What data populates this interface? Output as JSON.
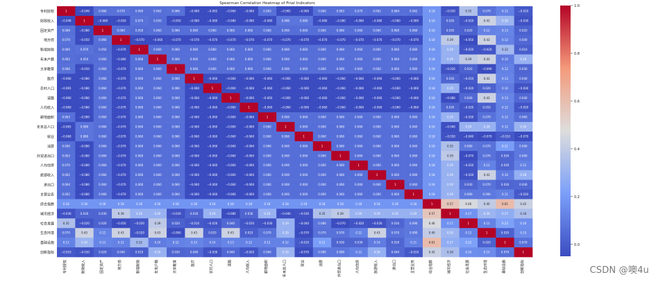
{
  "chart_data": {
    "type": "heatmap",
    "title": "Spearman Correlation Heatmap of Final Indicators",
    "labels": [
      "专利授权",
      "财政收入",
      "固定资产",
      "地方债",
      "新增财政",
      "年末户籍",
      "大学教育",
      "医疗",
      "农村人口",
      "道路",
      "人均收入",
      "耕地面积",
      "年末总人口",
      "就业",
      "消费",
      "外贸进出口",
      "人均住房",
      "旅游收入",
      "进出口",
      "主营业务",
      "综合指数",
      "城市经济",
      "社会发展",
      "生态环境",
      "基础设施",
      "创新指标"
    ],
    "matrix": [
      [
        1,
        -0.049,
        0.066,
        0.07,
        0.06,
        0.062,
        0.066,
        -0.06,
        -0.065,
        -0.06,
        -0.06,
        0.063,
        -0.065,
        -0.06,
        0.06,
        0.063,
        0.07,
        0.062,
        0.064,
        0.062,
        0.18,
        -0.03,
        0.35,
        0.07,
        0.12,
        -0.01
      ],
      [
        -0.049,
        1,
        -0.08,
        -0.05,
        0.07,
        0.05,
        -0.05,
        -0.08,
        -0.08,
        -0.08,
        -0.08,
        -0.08,
        0.08,
        0.08,
        -0.08,
        -0.08,
        -0.08,
        -0.08,
        -0.08,
        -0.08,
        0.18,
        0.03,
        -0.02,
        0.43,
        0.3,
        -0.03
      ],
      [
        0.066,
        -0.08,
        1,
        0.06,
        0.05,
        0.06,
        0.06,
        0.06,
        0.06,
        0.06,
        0.06,
        0.06,
        0.06,
        0.06,
        0.06,
        0.06,
        0.06,
        0.06,
        0.06,
        0.06,
        0.18,
        0.03,
        0.02,
        0.12,
        0.13,
        0.02
      ],
      [
        0.07,
        -0.05,
        0.06,
        1,
        -0.07,
        -0.06,
        -0.07,
        -0.07,
        -0.07,
        -0.07,
        -0.07,
        -0.07,
        -0.07,
        -0.07,
        -0.07,
        -0.07,
        -0.07,
        -0.07,
        -0.07,
        -0.07,
        0.18,
        0.39,
        -0.05,
        0.43,
        0.12,
        0.04
      ],
      [
        0.06,
        0.07,
        0.05,
        -0.07,
        1,
        0.06,
        0.06,
        0.06,
        0.06,
        0.06,
        0.06,
        0.06,
        0.06,
        0.06,
        0.06,
        0.06,
        0.06,
        0.06,
        0.06,
        0.06,
        0.18,
        0.29,
        -0.02,
        -0.02,
        0.32,
        0.01
      ],
      [
        0.062,
        0.05,
        0.06,
        -0.06,
        0.06,
        1,
        0.06,
        0.06,
        0.06,
        0.06,
        0.06,
        0.06,
        0.06,
        0.06,
        0.06,
        0.06,
        0.06,
        0.06,
        0.06,
        0.06,
        0.18,
        0.29,
        0.39,
        0.43,
        0.1,
        0.29
      ],
      [
        0.066,
        -0.05,
        0.06,
        -0.07,
        0.06,
        0.06,
        1,
        0.06,
        0.06,
        0.06,
        0.06,
        0.06,
        0.06,
        0.06,
        0.06,
        0.06,
        0.06,
        0.06,
        0.06,
        0.06,
        0.18,
        -0.03,
        0.02,
        -0.09,
        0.12,
        0.03
      ],
      [
        -0.06,
        -0.08,
        0.06,
        -0.07,
        0.06,
        0.06,
        0.06,
        1,
        -0.06,
        -0.06,
        -0.06,
        -0.06,
        -0.06,
        -0.06,
        -0.06,
        -0.06,
        -0.06,
        -0.06,
        -0.06,
        -0.06,
        0.18,
        0.03,
        -0.01,
        0.43,
        0.13,
        0.04
      ],
      [
        -0.065,
        -0.08,
        0.06,
        -0.07,
        0.06,
        0.06,
        0.06,
        -0.06,
        1,
        -0.06,
        -0.06,
        -0.06,
        -0.06,
        -0.06,
        -0.06,
        -0.06,
        -0.06,
        -0.06,
        -0.06,
        -0.06,
        0.18,
        0.29,
        -0.02,
        0.02,
        0.1,
        -0.03
      ],
      [
        -0.06,
        -0.08,
        0.06,
        -0.07,
        0.06,
        0.06,
        0.06,
        -0.06,
        -0.06,
        1,
        -0.06,
        -0.06,
        -0.06,
        -0.06,
        -0.06,
        -0.06,
        -0.06,
        -0.06,
        -0.06,
        -0.06,
        0.18,
        -0.08,
        0.04,
        0.43,
        0.13,
        0.04
      ],
      [
        -0.06,
        -0.08,
        0.06,
        -0.07,
        0.06,
        0.06,
        0.06,
        -0.06,
        -0.06,
        -0.06,
        1,
        -0.06,
        -0.06,
        -0.06,
        -0.06,
        -0.06,
        -0.06,
        -0.06,
        -0.06,
        -0.06,
        0.18,
        0.03,
        -0.02,
        0.01,
        0.12,
        -0.02
      ],
      [
        0.063,
        -0.08,
        0.06,
        -0.07,
        0.06,
        0.06,
        0.06,
        -0.06,
        -0.06,
        -0.06,
        -0.06,
        1,
        0.06,
        0.06,
        0.06,
        0.06,
        0.06,
        0.06,
        0.06,
        0.06,
        0.18,
        0.29,
        -0.03,
        0.07,
        0.12,
        0.06
      ],
      [
        -0.065,
        0.08,
        0.06,
        -0.07,
        0.06,
        0.06,
        0.06,
        -0.06,
        -0.06,
        -0.06,
        -0.06,
        0.06,
        1,
        0.06,
        0.06,
        0.06,
        0.06,
        0.06,
        0.06,
        0.06,
        0.18,
        -0.04,
        0.29,
        0.29,
        0.12,
        0.3
      ],
      [
        -0.06,
        0.08,
        0.06,
        -0.07,
        0.06,
        0.06,
        0.06,
        -0.06,
        -0.06,
        -0.06,
        -0.06,
        0.06,
        0.06,
        1,
        0.06,
        0.06,
        0.06,
        0.06,
        0.06,
        0.06,
        0.18,
        -0.03,
        -0.04,
        -0.07,
        -0.01,
        -0.07
      ],
      [
        0.06,
        -0.08,
        0.06,
        -0.07,
        0.06,
        0.06,
        0.06,
        -0.06,
        -0.06,
        -0.06,
        -0.06,
        0.06,
        0.06,
        0.06,
        1,
        0.06,
        0.06,
        0.06,
        0.06,
        0.06,
        0.18,
        0.35,
        0.08,
        0.07,
        0.21,
        0.09
      ],
      [
        0.063,
        -0.08,
        0.06,
        -0.07,
        0.06,
        0.06,
        0.06,
        -0.06,
        -0.06,
        -0.06,
        -0.06,
        0.06,
        0.06,
        0.06,
        0.06,
        1,
        0.06,
        0.06,
        0.06,
        0.06,
        0.18,
        0.39,
        -0.07,
        0.07,
        0.03,
        0.09
      ],
      [
        0.07,
        -0.08,
        0.06,
        -0.07,
        0.06,
        0.06,
        0.06,
        -0.06,
        -0.06,
        -0.06,
        -0.06,
        0.06,
        0.06,
        0.06,
        0.06,
        0.06,
        1,
        0.06,
        0.06,
        0.06,
        0.18,
        0.29,
        -0.02,
        0.12,
        0.03,
        0.12
      ],
      [
        0.062,
        -0.08,
        0.06,
        -0.07,
        0.06,
        0.06,
        0.06,
        -0.06,
        -0.06,
        -0.06,
        -0.06,
        0.06,
        0.06,
        0.06,
        0.06,
        0.06,
        0.06,
        1,
        0.06,
        0.06,
        0.18,
        0.29,
        -0.03,
        0.43,
        0.1,
        0.28
      ],
      [
        0.064,
        -0.08,
        0.06,
        -0.07,
        0.06,
        0.06,
        0.06,
        -0.06,
        -0.06,
        -0.06,
        -0.06,
        0.06,
        0.06,
        0.06,
        0.06,
        0.06,
        0.06,
        0.06,
        1,
        0.06,
        0.18,
        0.29,
        0.03,
        0.07,
        0.03,
        0.04
      ],
      [
        0.062,
        -0.08,
        0.06,
        -0.07,
        0.06,
        0.06,
        0.06,
        -0.06,
        -0.06,
        -0.06,
        -0.06,
        0.06,
        0.06,
        0.06,
        0.06,
        0.06,
        0.06,
        0.06,
        0.06,
        1,
        0.18,
        0.29,
        0.09,
        0.09,
        0.11,
        -0.01
      ],
      [
        0.18,
        0.18,
        0.18,
        0.18,
        0.18,
        0.18,
        0.18,
        0.18,
        0.18,
        0.18,
        0.18,
        0.18,
        0.18,
        0.18,
        0.18,
        0.18,
        0.18,
        0.18,
        0.18,
        0.18,
        1,
        0.57,
        0.46,
        0.4,
        0.61,
        0.42
      ],
      [
        -0.03,
        0.03,
        0.03,
        0.39,
        0.29,
        0.29,
        -0.03,
        0.03,
        0.29,
        -0.08,
        0.03,
        0.29,
        -0.04,
        -0.03,
        0.35,
        0.39,
        0.29,
        0.29,
        0.29,
        0.29,
        0.57,
        1,
        0.17,
        0.3,
        0.27,
        0.34
      ],
      [
        0.35,
        -0.02,
        0.02,
        -0.05,
        -0.02,
        0.39,
        0.02,
        -0.01,
        -0.02,
        0.04,
        -0.02,
        -0.03,
        0.29,
        -0.04,
        0.08,
        -0.07,
        -0.02,
        -0.03,
        0.03,
        0.09,
        0.46,
        0.17,
        1,
        0.12,
        0.22,
        0.16
      ],
      [
        0.07,
        0.43,
        0.12,
        0.43,
        -0.02,
        0.43,
        -0.09,
        0.43,
        0.02,
        0.43,
        0.01,
        0.07,
        0.29,
        -0.07,
        0.07,
        0.07,
        0.12,
        0.43,
        0.07,
        0.09,
        0.4,
        0.3,
        0.12,
        1,
        0.02,
        0.15
      ],
      [
        0.12,
        0.3,
        0.13,
        0.12,
        0.32,
        0.1,
        0.12,
        0.13,
        0.1,
        0.13,
        0.12,
        0.12,
        0.12,
        -0.01,
        0.21,
        0.03,
        0.03,
        0.1,
        0.03,
        0.11,
        0.61,
        0.27,
        0.22,
        0.02,
        1,
        0.07
      ],
      [
        -0.01,
        -0.03,
        0.02,
        0.04,
        0.01,
        0.29,
        0.03,
        0.04,
        -0.03,
        0.04,
        -0.02,
        0.06,
        0.3,
        -0.07,
        0.09,
        0.09,
        0.12,
        0.28,
        0.04,
        -0.01,
        0.42,
        0.34,
        0.16,
        0.15,
        0.07,
        1
      ]
    ],
    "vmin": -0.05,
    "vmax": 1.0,
    "colormap": "coolwarm",
    "colors": {
      "low": "#3b4cc0",
      "mid": "#dddddd",
      "high": "#b40426"
    },
    "colorbar_ticks": [
      "1.0",
      "0.8",
      "0.6",
      "0.4",
      "0.2",
      "0.0"
    ],
    "legend_position": "right"
  },
  "watermark": "CSDN @噢4u"
}
